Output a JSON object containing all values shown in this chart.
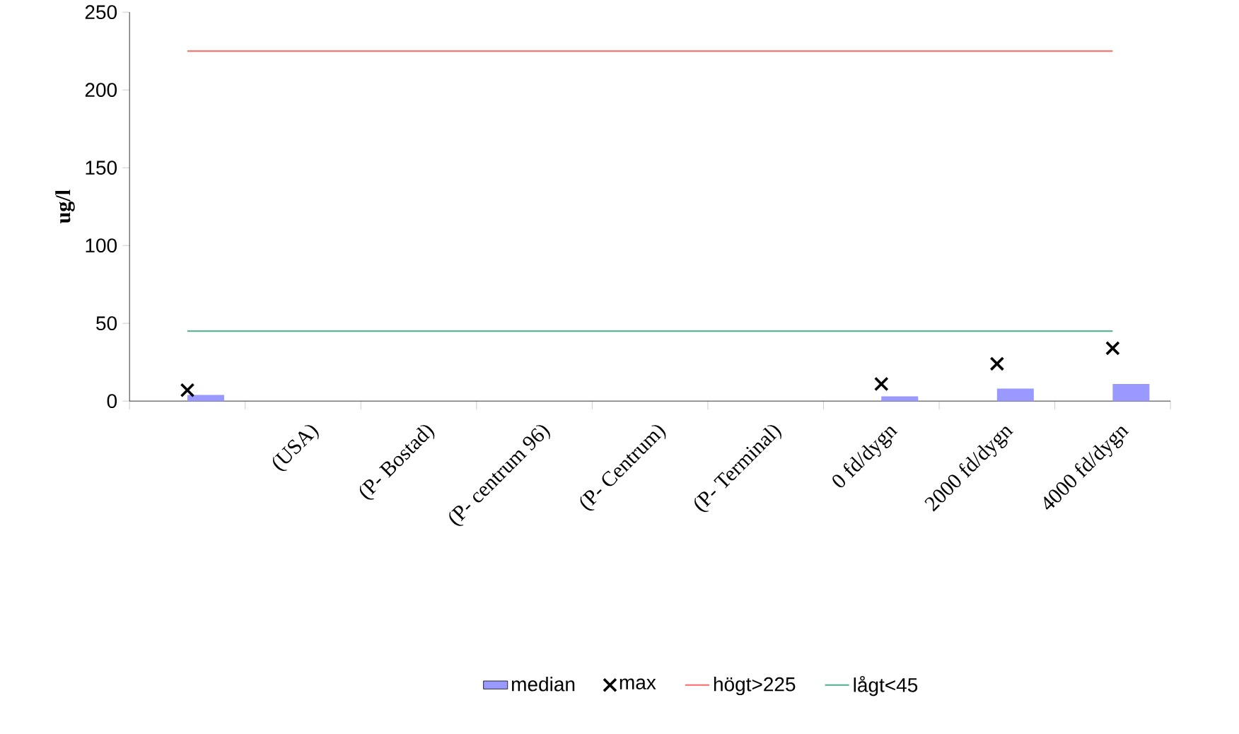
{
  "chart_data": {
    "type": "bar",
    "ylabel": "ug/l",
    "categories": [
      null,
      "(USA)",
      "(P- Bostad)",
      "(P- centrum 96)",
      "(P- Centrum)",
      "(P- Terminal)",
      "0 fd/dygn",
      "2000 fd/dygn",
      "4000 fd/dygn"
    ],
    "series": [
      {
        "name": "median",
        "color": "#9999ff",
        "values": [
          4,
          null,
          null,
          null,
          null,
          null,
          3,
          8,
          11
        ]
      },
      {
        "name": "max",
        "type": "scatter",
        "marker": "cross",
        "color": "#000000",
        "values": [
          7,
          null,
          null,
          null,
          null,
          null,
          11,
          24,
          34
        ]
      }
    ],
    "ref_lines": [
      {
        "axis": "y",
        "value": 225,
        "label": "högt>225",
        "color": "#ff6666"
      },
      {
        "axis": "y",
        "value": 45,
        "label": "lågt<45",
        "color": "#4dae8a"
      }
    ],
    "ylim": [
      0,
      250
    ],
    "yticks": [
      0,
      50,
      100,
      150,
      200,
      250
    ],
    "grid": false,
    "legend": "bottom"
  }
}
